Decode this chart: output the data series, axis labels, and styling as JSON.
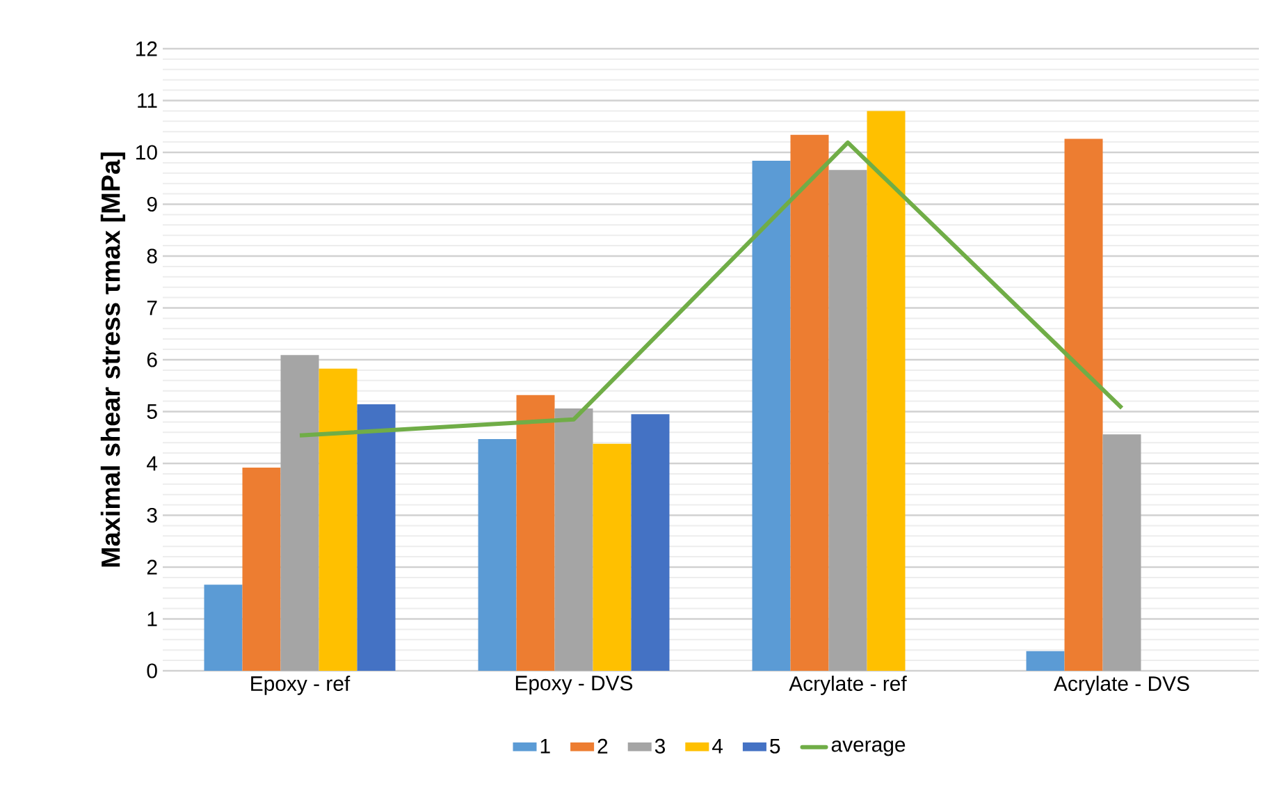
{
  "chart_data": {
    "type": "bar",
    "ylabel": "Maximal shear stress τmax [MPa]",
    "categories": [
      "Epoxy - ref",
      "Epoxy - DVS",
      "Acrylate - ref",
      "Acrylate - DVS"
    ],
    "series": [
      {
        "name": "1",
        "color": "#5b9bd5",
        "values": [
          1.66,
          4.47,
          9.84,
          0.38
        ]
      },
      {
        "name": "2",
        "color": "#ed7d31",
        "values": [
          3.92,
          5.32,
          10.34,
          10.26
        ]
      },
      {
        "name": "3",
        "color": "#a5a5a5",
        "values": [
          6.09,
          5.06,
          9.66,
          4.56
        ]
      },
      {
        "name": "4",
        "color": "#ffc000",
        "values": [
          5.83,
          4.38,
          10.8,
          null
        ]
      },
      {
        "name": "5",
        "color": "#4472c4",
        "values": [
          5.14,
          4.95,
          null,
          null
        ]
      },
      {
        "name": "average",
        "type": "line",
        "color": "#70ad47",
        "values": [
          4.54,
          4.85,
          10.19,
          5.07
        ]
      }
    ],
    "ylim": [
      0,
      12
    ],
    "yticks": [
      0,
      1,
      2,
      3,
      4,
      5,
      6,
      7,
      8,
      9,
      10,
      11,
      12
    ],
    "grid": "y",
    "legend": "bottom"
  }
}
